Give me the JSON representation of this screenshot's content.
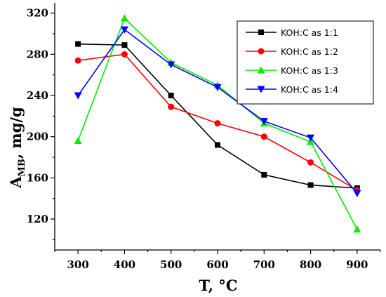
{
  "chart_data": {
    "type": "line",
    "xlabel": "T, °C",
    "ylabel_main": "A",
    "ylabel_sub": "MB",
    "ylabel_rest": ", mg/g",
    "x": [
      300,
      400,
      500,
      600,
      700,
      800,
      900
    ],
    "xlim": [
      250,
      950
    ],
    "ylim": [
      90,
      330
    ],
    "xticks": [
      "300",
      "400",
      "500",
      "600",
      "700",
      "800",
      "900"
    ],
    "yticks": [
      "120",
      "160",
      "200",
      "240",
      "280",
      "320"
    ],
    "legend_position": "top-right",
    "grid": false,
    "series": [
      {
        "name": "KOH:C as 1:1",
        "color": "#000000",
        "marker": "square",
        "values": [
          290,
          289,
          240,
          192,
          163,
          153,
          150
        ]
      },
      {
        "name": "KOH:C as 1:2",
        "color": "#ff0000",
        "marker": "circle",
        "values": [
          274,
          280,
          229,
          213,
          200,
          175,
          148
        ]
      },
      {
        "name": "KOH:C as 1:3",
        "color": "#00ee00",
        "marker": "triangle-up",
        "values": [
          196,
          315,
          272,
          250,
          213,
          195,
          110
        ]
      },
      {
        "name": "KOH:C as 1:4",
        "color": "#0000ff",
        "marker": "triangle-down",
        "values": [
          240,
          304,
          270,
          248,
          215,
          199,
          145
        ]
      }
    ]
  }
}
